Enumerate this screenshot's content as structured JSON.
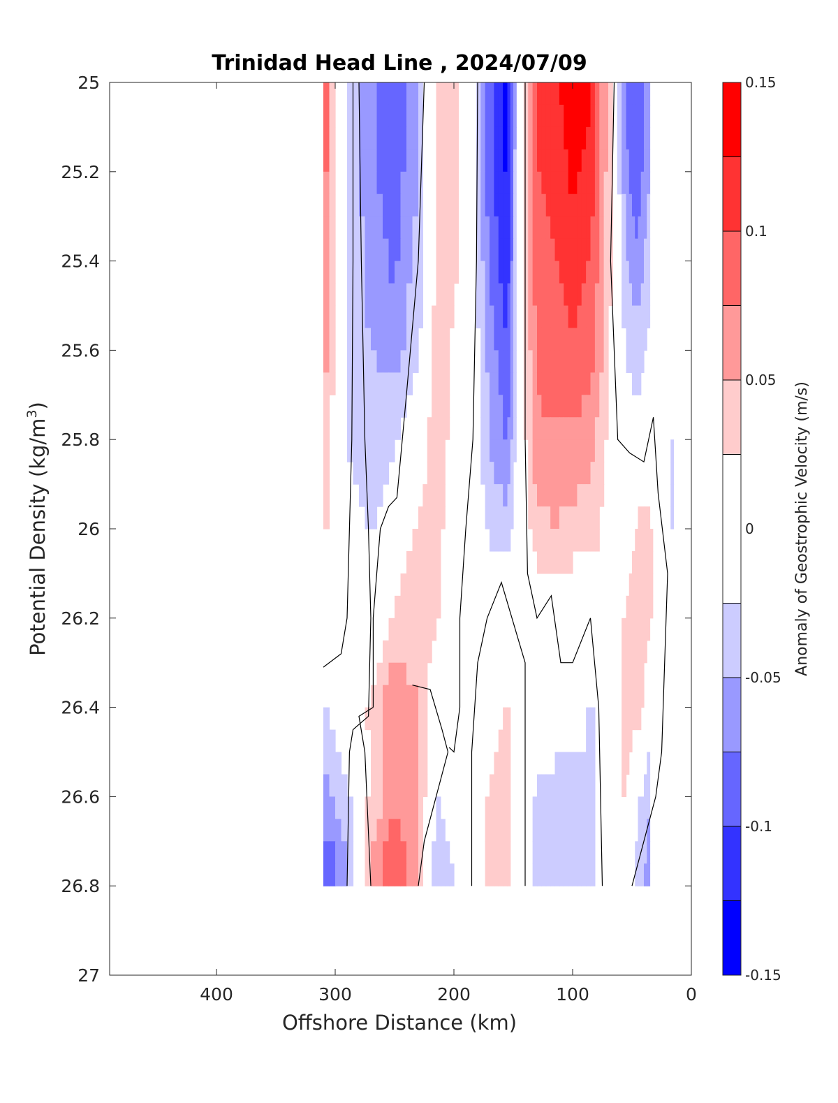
{
  "chart_data": {
    "type": "heatmap",
    "title": "Trinidad Head Line , 2024/07/09",
    "xlabel": "Offshore Distance (km)",
    "ylabel": "Potential Density (kg/m",
    "ylabel_sup": "3",
    "ylabel_close": ")",
    "xlim": [
      490,
      0
    ],
    "ylim": [
      25,
      27
    ],
    "x_ticks": [
      400,
      300,
      200,
      100,
      0
    ],
    "y_ticks": [
      25,
      25.2,
      25.4,
      25.6,
      25.8,
      26,
      26.2,
      26.4,
      26.6,
      26.8,
      27
    ],
    "y_tick_labels": [
      "25",
      "25.2",
      "25.4",
      "25.6",
      "25.8",
      "26",
      "26.2",
      "26.4",
      "26.6",
      "26.8",
      "27"
    ],
    "colorbar": {
      "label": "Anomaly of Geostrophic Velocity (m/s)",
      "range": [
        -0.15,
        0.15
      ],
      "ticks": [
        0.15,
        0.1,
        0.05,
        0,
        -0.05,
        -0.1,
        -0.15
      ],
      "tick_labels": [
        "0.15",
        "0.1",
        "0.05",
        "0",
        "-0.05",
        "-0.1",
        "-0.15"
      ],
      "levels": [
        0.15,
        0.125,
        0.1,
        0.075,
        0.05,
        0.025,
        -0.025,
        -0.05,
        -0.075,
        -0.1,
        -0.125,
        -0.15
      ],
      "colors": [
        "#ff0000",
        "#ff3333",
        "#ff6666",
        "#ff9999",
        "#ffcccc",
        "#ffffff",
        "#ccccff",
        "#9999ff",
        "#6666ff",
        "#3333ff",
        "#0000ff"
      ]
    },
    "stations_x_km": [
      310,
      290,
      270,
      250,
      230,
      215,
      200,
      185,
      170,
      155,
      145,
      130,
      115,
      100,
      85,
      70,
      55,
      45,
      35,
      25,
      15
    ],
    "density_levels": [
      25,
      25.2,
      25.4,
      25.6,
      25.8,
      26,
      26.2,
      26.4,
      26.6,
      26.8
    ],
    "velocity_grid": [
      [
        0.09,
        -0.02,
        -0.07,
        -0.1,
        -0.05,
        0.03,
        0.04,
        0.0,
        -0.09,
        -0.14,
        0.0,
        0.1,
        0.12,
        0.14,
        0.13,
        0.04,
        -0.08,
        -0.1,
        -0.06,
        null,
        null
      ],
      [
        0.09,
        -0.02,
        -0.07,
        -0.09,
        -0.05,
        0.03,
        0.04,
        0.0,
        -0.09,
        -0.13,
        0.0,
        0.1,
        0.11,
        0.13,
        0.12,
        0.04,
        -0.07,
        -0.09,
        -0.05,
        null,
        null
      ],
      [
        0.08,
        -0.03,
        -0.06,
        -0.08,
        -0.04,
        0.03,
        0.03,
        0.0,
        -0.08,
        -0.12,
        0.0,
        0.09,
        0.1,
        0.11,
        0.1,
        0.04,
        -0.05,
        -0.07,
        -0.03,
        null,
        null
      ],
      [
        0.07,
        -0.03,
        -0.05,
        -0.06,
        -0.03,
        0.04,
        0.02,
        0.0,
        -0.06,
        -0.1,
        0.0,
        0.08,
        0.09,
        0.1,
        0.09,
        0.03,
        -0.03,
        -0.04,
        -0.02,
        null,
        null
      ],
      [
        0.04,
        -0.03,
        -0.04,
        -0.03,
        0.0,
        0.05,
        0.01,
        0.0,
        -0.05,
        -0.08,
        0.0,
        0.07,
        0.07,
        0.07,
        0.06,
        0.02,
        -0.01,
        -0.01,
        0.0,
        0.0,
        -0.03
      ],
      [
        0.03,
        0.0,
        -0.03,
        0.0,
        0.03,
        0.04,
        0.0,
        0.0,
        -0.03,
        -0.04,
        0.0,
        0.04,
        0.05,
        0.04,
        0.04,
        0.01,
        0.0,
        0.03,
        0.03,
        0.0,
        -0.03
      ],
      [
        0.0,
        0.0,
        0.0,
        0.03,
        0.04,
        0.03,
        0.0,
        0.0,
        0.0,
        0.0,
        0.0,
        0.0,
        0.0,
        0.0,
        0.0,
        0.0,
        0.03,
        0.04,
        0.03,
        0.0,
        null
      ],
      [
        -0.03,
        0.0,
        0.03,
        0.07,
        0.05,
        0.0,
        0.0,
        0.0,
        0.0,
        0.03,
        0.0,
        0.0,
        0.0,
        0.0,
        -0.03,
        0.0,
        0.03,
        0.04,
        0.0,
        0.0,
        null
      ],
      [
        -0.06,
        -0.03,
        0.03,
        0.07,
        0.06,
        -0.03,
        0.0,
        0.0,
        0.03,
        0.04,
        0.0,
        -0.03,
        -0.04,
        -0.04,
        -0.03,
        0.0,
        0.03,
        -0.02,
        -0.05,
        null,
        null
      ],
      [
        -0.11,
        -0.06,
        0.06,
        0.11,
        0.05,
        -0.04,
        -0.03,
        0.0,
        0.03,
        0.04,
        0.0,
        -0.04,
        -0.04,
        -0.03,
        -0.03,
        0.0,
        0.0,
        -0.04,
        -0.06,
        null,
        null
      ]
    ],
    "zero_contours": [
      [
        [
          285,
          25
        ],
        [
          285,
          25.4
        ],
        [
          286,
          25.8
        ],
        [
          288,
          26.0
        ],
        [
          290,
          26.2
        ],
        [
          295,
          26.28
        ],
        [
          310,
          26.31
        ]
      ],
      [
        [
          280,
          25
        ],
        [
          278,
          25.4
        ],
        [
          275,
          25.8
        ],
        [
          272,
          26.0
        ],
        [
          270,
          26.2
        ],
        [
          272,
          26.42
        ],
        [
          285,
          26.45
        ],
        [
          288,
          26.5
        ],
        [
          290,
          26.8
        ]
      ],
      [
        [
          225,
          25
        ],
        [
          230,
          25.4
        ],
        [
          240,
          25.7
        ],
        [
          248,
          25.93
        ],
        [
          255,
          25.95
        ],
        [
          262,
          26.0
        ],
        [
          268,
          26.2
        ],
        [
          268,
          26.4
        ]
      ],
      [
        [
          268,
          26.4
        ],
        [
          280,
          26.42
        ],
        [
          275,
          26.5
        ],
        [
          270,
          26.8
        ]
      ],
      [
        [
          235,
          26.35
        ],
        [
          220,
          26.36
        ],
        [
          210,
          26.45
        ],
        [
          205,
          26.5
        ],
        [
          210,
          26.55
        ],
        [
          225,
          26.7
        ],
        [
          230,
          26.8
        ]
      ],
      [
        [
          180,
          25
        ],
        [
          181,
          25.4
        ],
        [
          184,
          25.8
        ],
        [
          190,
          26.0
        ],
        [
          195,
          26.2
        ],
        [
          195,
          26.4
        ],
        [
          200,
          26.5
        ],
        [
          204,
          26.49
        ]
      ],
      [
        [
          172,
          26.2
        ],
        [
          180,
          26.3
        ],
        [
          185,
          26.5
        ],
        [
          185,
          26.8
        ]
      ],
      [
        [
          172,
          26.2
        ],
        [
          160,
          26.12
        ],
        [
          140,
          26.3
        ],
        [
          140,
          26.8
        ]
      ],
      [
        [
          140,
          25
        ],
        [
          140,
          25.4
        ],
        [
          140,
          25.8
        ],
        [
          138,
          26.1
        ],
        [
          130,
          26.2
        ],
        [
          118,
          26.15
        ],
        [
          110,
          26.3
        ],
        [
          100,
          26.3
        ],
        [
          85,
          26.2
        ],
        [
          78,
          26.4
        ],
        [
          75,
          26.8
        ]
      ],
      [
        [
          65,
          25
        ],
        [
          68,
          25.4
        ],
        [
          62,
          25.8
        ],
        [
          52,
          25.83
        ],
        [
          40,
          25.85
        ],
        [
          32,
          25.75
        ],
        [
          28,
          25.92
        ],
        [
          20,
          26.1
        ],
        [
          25,
          26.5
        ],
        [
          30,
          26.6
        ],
        [
          50,
          26.8
        ]
      ]
    ]
  }
}
